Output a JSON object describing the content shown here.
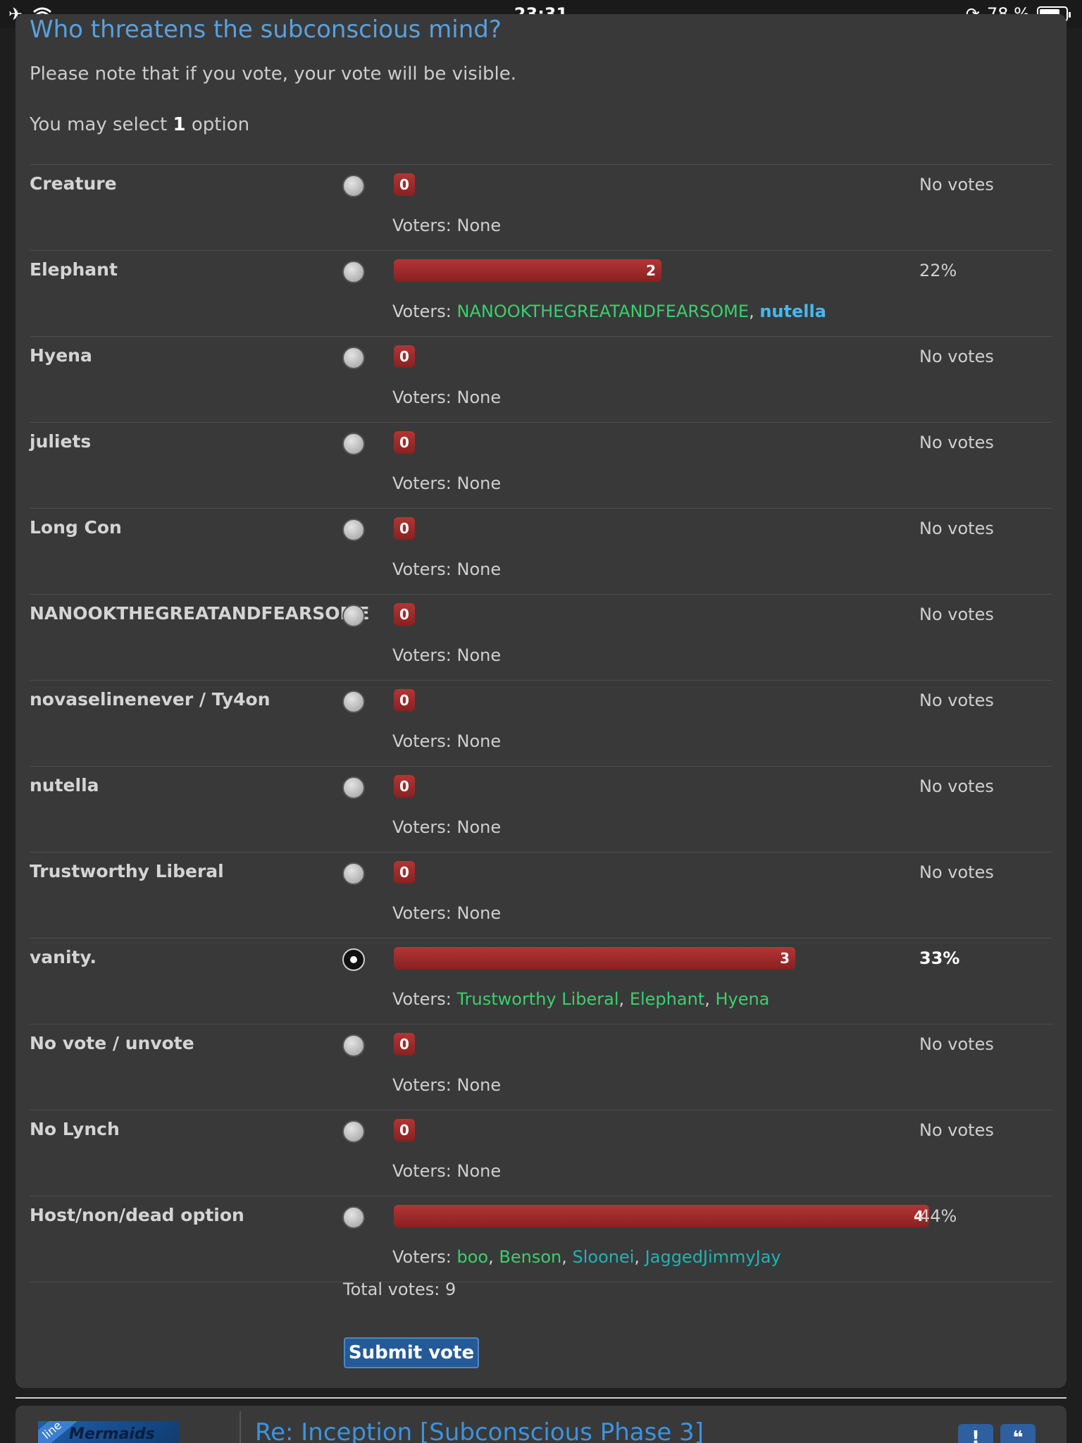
{
  "status_bar": {
    "time": "23:31",
    "battery_text": "78 %",
    "battery_level": 0.78,
    "icons": [
      "airplane-icon",
      "wifi-icon",
      "rotation-lock-icon",
      "battery-icon"
    ]
  },
  "poll": {
    "title": "Who threatens the subconscious mind?",
    "note": "Please note that if you vote, your vote will be visible.",
    "select_prefix": "You may select ",
    "select_count": "1",
    "select_suffix": " option",
    "voters_label": "Voters: ",
    "options": [
      {
        "label": "Creature",
        "count": "0",
        "fraction": 0,
        "pct": "No votes",
        "selected": false,
        "voters": [
          {
            "name": "None",
            "style": "none"
          }
        ]
      },
      {
        "label": "Elephant",
        "count": "2",
        "fraction": 0.5,
        "pct": "22%",
        "selected": false,
        "voters": [
          {
            "name": "NANOOKTHEGREATANDFEARSOME",
            "style": "green"
          },
          {
            "name": "nutella",
            "style": "blue"
          }
        ]
      },
      {
        "label": "Hyena",
        "count": "0",
        "fraction": 0,
        "pct": "No votes",
        "selected": false,
        "voters": [
          {
            "name": "None",
            "style": "none"
          }
        ]
      },
      {
        "label": "juliets",
        "count": "0",
        "fraction": 0,
        "pct": "No votes",
        "selected": false,
        "voters": [
          {
            "name": "None",
            "style": "none"
          }
        ]
      },
      {
        "label": "Long Con",
        "count": "0",
        "fraction": 0,
        "pct": "No votes",
        "selected": false,
        "voters": [
          {
            "name": "None",
            "style": "none"
          }
        ]
      },
      {
        "label": "NANOOKTHEGREATANDFEARSOME",
        "count": "0",
        "fraction": 0,
        "pct": "No votes",
        "selected": false,
        "voters": [
          {
            "name": "None",
            "style": "none"
          }
        ]
      },
      {
        "label": "novaselinenever / Ty4on",
        "count": "0",
        "fraction": 0,
        "pct": "No votes",
        "selected": false,
        "voters": [
          {
            "name": "None",
            "style": "none"
          }
        ]
      },
      {
        "label": "nutella",
        "count": "0",
        "fraction": 0,
        "pct": "No votes",
        "selected": false,
        "voters": [
          {
            "name": "None",
            "style": "none"
          }
        ]
      },
      {
        "label": "Trustworthy Liberal",
        "count": "0",
        "fraction": 0,
        "pct": "No votes",
        "selected": false,
        "voters": [
          {
            "name": "None",
            "style": "none"
          }
        ]
      },
      {
        "label": "vanity.",
        "count": "3",
        "fraction": 0.75,
        "pct": "33%",
        "selected": true,
        "voters": [
          {
            "name": "Trustworthy Liberal",
            "style": "green"
          },
          {
            "name": "Elephant",
            "style": "green"
          },
          {
            "name": "Hyena",
            "style": "green"
          }
        ]
      },
      {
        "label": "No vote / unvote",
        "count": "0",
        "fraction": 0,
        "pct": "No votes",
        "selected": false,
        "voters": [
          {
            "name": "None",
            "style": "none"
          }
        ]
      },
      {
        "label": "No Lynch",
        "count": "0",
        "fraction": 0,
        "pct": "No votes",
        "selected": false,
        "voters": [
          {
            "name": "None",
            "style": "none"
          }
        ]
      },
      {
        "label": "Host/non/dead option",
        "count": "4",
        "fraction": 1,
        "pct": "44%",
        "selected": false,
        "voters": [
          {
            "name": "boo",
            "style": "green"
          },
          {
            "name": "Benson",
            "style": "green"
          },
          {
            "name": "Sloonei",
            "style": "teal"
          },
          {
            "name": "JaggedJimmyJay",
            "style": "teal"
          }
        ]
      }
    ],
    "total": "Total votes: 9",
    "submit_label": "Submit vote"
  },
  "next_post": {
    "title": "Re: Inception [Subconscious Phase 3]",
    "avatar_text": "Mermaids",
    "avatar_ribbon": "line"
  },
  "colors": {
    "bar": "#9e2a2a",
    "link_blue": "#3c93e0",
    "voter_green": "#3bcf6e",
    "voter_teal": "#1fb3b3"
  }
}
